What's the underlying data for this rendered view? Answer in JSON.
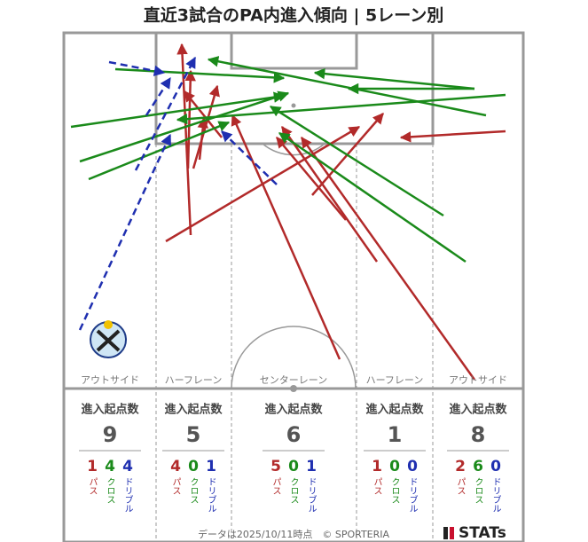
{
  "title": "直近3試合のPA内進入傾向 | 5レーン別",
  "lane_header": "進入起点数",
  "type_labels": {
    "pass": "パス",
    "cross": "クロス",
    "dribble": "ドリブル"
  },
  "lanes": [
    {
      "name": "アウトサイド",
      "total": 9,
      "pass": 1,
      "cross": 4,
      "dribble": 4
    },
    {
      "name": "ハーフレーン",
      "total": 5,
      "pass": 4,
      "cross": 0,
      "dribble": 1
    },
    {
      "name": "センターレーン",
      "total": 6,
      "pass": 5,
      "cross": 0,
      "dribble": 1
    },
    {
      "name": "ハーフレーン",
      "total": 1,
      "pass": 1,
      "cross": 0,
      "dribble": 0
    },
    {
      "name": "アウトサイド",
      "total": 8,
      "pass": 2,
      "cross": 6,
      "dribble": 0
    }
  ],
  "footer": "データは2025/10/11時点　© SPORTERIA",
  "brand": "STATs"
}
